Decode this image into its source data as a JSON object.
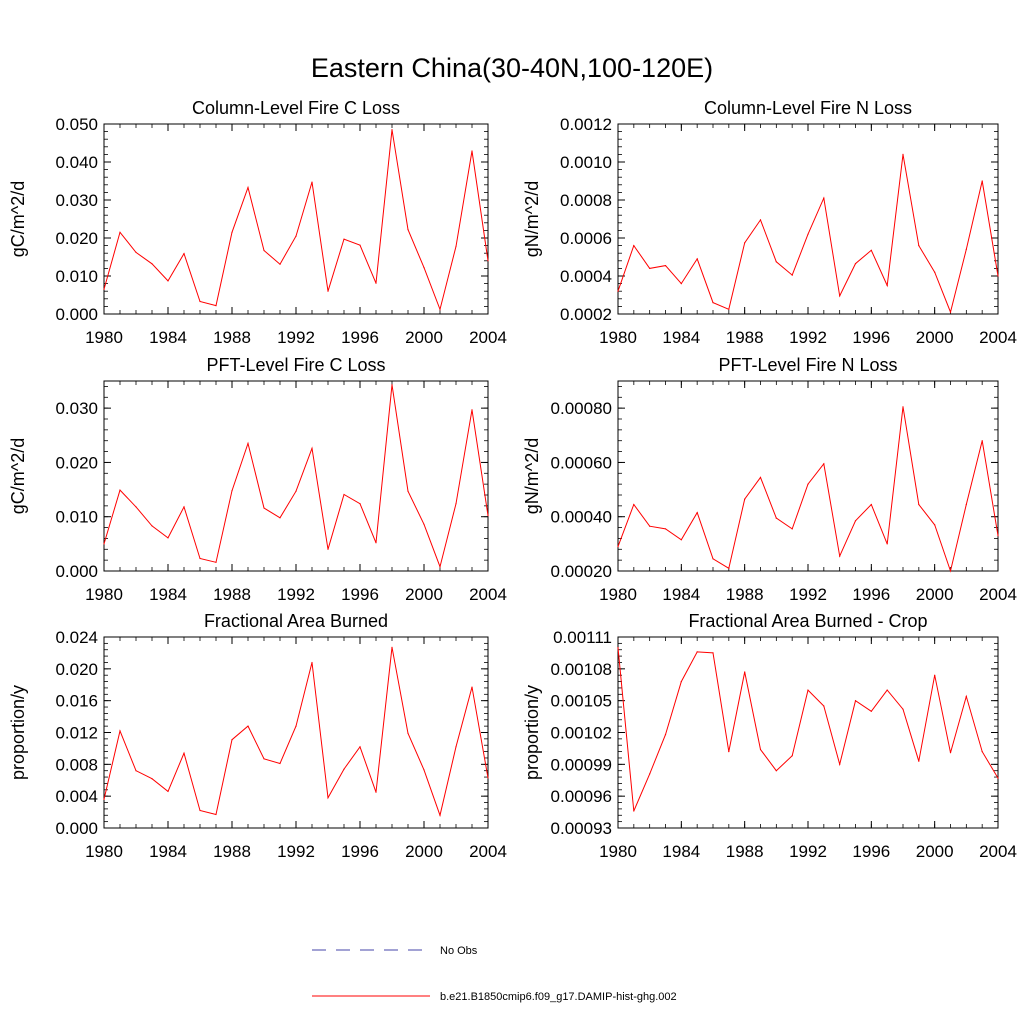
{
  "main_title": "Eastern China(30-40N,100-120E)",
  "series_color": "#ff0000",
  "obs_color": "#4444aa",
  "legend": {
    "obs_label": "No Obs",
    "model_label": "b.e21.B1850cmip6.f09_g17.DAMIP-hist-ghg.002"
  },
  "chart_data": [
    {
      "type": "line",
      "title": "Column-Level Fire C Loss",
      "ylabel": "gC/m^2/d",
      "xlim": [
        1980,
        2004
      ],
      "ylim": [
        0.0,
        0.05
      ],
      "yticks": [
        0.0,
        0.01,
        0.02,
        0.03,
        0.04,
        0.05
      ],
      "ytick_labels": [
        "0.000",
        "0.010",
        "0.020",
        "0.030",
        "0.040",
        "0.050"
      ],
      "xticks": [
        1980,
        1984,
        1988,
        1992,
        1996,
        2000,
        2004
      ],
      "xtick_labels": [
        "1980",
        "1984",
        "1988",
        "1992",
        "1996",
        "2000",
        "2004"
      ],
      "x": [
        1980,
        1981,
        1982,
        1983,
        1984,
        1985,
        1986,
        1987,
        1988,
        1989,
        1990,
        1991,
        1992,
        1993,
        1994,
        1995,
        1996,
        1997,
        1998,
        1999,
        2000,
        2001,
        2002,
        2003,
        2004
      ],
      "series": [
        {
          "values": [
            0.0065,
            0.0215,
            0.0162,
            0.0132,
            0.0087,
            0.0159,
            0.0033,
            0.0022,
            0.0215,
            0.0333,
            0.0167,
            0.0131,
            0.0205,
            0.0347,
            0.006,
            0.0197,
            0.0181,
            0.0081,
            0.0485,
            0.0222,
            0.0122,
            0.0012,
            0.0178,
            0.0429,
            0.014
          ]
        }
      ]
    },
    {
      "type": "line",
      "title": "Column-Level Fire N Loss",
      "ylabel": "gN/m^2/d",
      "xlim": [
        1980,
        2004
      ],
      "ylim": [
        0.0002,
        0.0012
      ],
      "yticks": [
        0.0002,
        0.0004,
        0.0006,
        0.0008,
        0.001,
        0.0012
      ],
      "ytick_labels": [
        "0.0002",
        "0.0004",
        "0.0006",
        "0.0008",
        "0.0010",
        "0.0012"
      ],
      "xticks": [
        1980,
        1984,
        1988,
        1992,
        1996,
        2000,
        2004
      ],
      "xtick_labels": [
        "1980",
        "1984",
        "1988",
        "1992",
        "1996",
        "2000",
        "2004"
      ],
      "x": [
        1980,
        1981,
        1982,
        1983,
        1984,
        1985,
        1986,
        1987,
        1988,
        1989,
        1990,
        1991,
        1992,
        1993,
        1994,
        1995,
        1996,
        1997,
        1998,
        1999,
        2000,
        2001,
        2002,
        2003,
        2004
      ],
      "series": [
        {
          "values": [
            0.00032,
            0.00056,
            0.00044,
            0.000455,
            0.00036,
            0.00049,
            0.00026,
            0.000225,
            0.000575,
            0.000695,
            0.000475,
            0.000405,
            0.00062,
            0.00081,
            0.000295,
            0.000465,
            0.000535,
            0.00035,
            0.00104,
            0.00056,
            0.00042,
            0.00021,
            0.00054,
            0.0009,
            0.0004
          ]
        }
      ]
    },
    {
      "type": "line",
      "title": "PFT-Level Fire C Loss",
      "ylabel": "gC/m^2/d",
      "xlim": [
        1980,
        2004
      ],
      "ylim": [
        0.0,
        0.035
      ],
      "yticks": [
        0.0,
        0.01,
        0.02,
        0.03
      ],
      "ytick_labels": [
        "0.000",
        "0.010",
        "0.020",
        "0.030"
      ],
      "xticks": [
        1980,
        1984,
        1988,
        1992,
        1996,
        2000,
        2004
      ],
      "xtick_labels": [
        "1980",
        "1984",
        "1988",
        "1992",
        "1996",
        "2000",
        "2004"
      ],
      "x": [
        1980,
        1981,
        1982,
        1983,
        1984,
        1985,
        1986,
        1987,
        1988,
        1989,
        1990,
        1991,
        1992,
        1993,
        1994,
        1995,
        1996,
        1997,
        1998,
        1999,
        2000,
        2001,
        2002,
        2003,
        2004
      ],
      "series": [
        {
          "values": [
            0.005,
            0.0149,
            0.0118,
            0.0083,
            0.0061,
            0.0118,
            0.0023,
            0.0016,
            0.0148,
            0.0235,
            0.0116,
            0.0098,
            0.0147,
            0.0226,
            0.004,
            0.0141,
            0.0124,
            0.0052,
            0.0343,
            0.0147,
            0.0086,
            0.0008,
            0.0124,
            0.0297,
            0.0102
          ]
        }
      ]
    },
    {
      "type": "line",
      "title": "PFT-Level Fire N Loss",
      "ylabel": "gN/m^2/d",
      "xlim": [
        1980,
        2004
      ],
      "ylim": [
        0.0002,
        0.0009
      ],
      "yticks": [
        0.0002,
        0.0004,
        0.0006,
        0.0008
      ],
      "ytick_labels": [
        "0.00020",
        "0.00040",
        "0.00060",
        "0.00080"
      ],
      "xticks": [
        1980,
        1984,
        1988,
        1992,
        1996,
        2000,
        2004
      ],
      "xtick_labels": [
        "1980",
        "1984",
        "1988",
        "1992",
        "1996",
        "2000",
        "2004"
      ],
      "x": [
        1980,
        1981,
        1982,
        1983,
        1984,
        1985,
        1986,
        1987,
        1988,
        1989,
        1990,
        1991,
        1992,
        1993,
        1994,
        1995,
        1996,
        1997,
        1998,
        1999,
        2000,
        2001,
        2002,
        2003,
        2004
      ],
      "series": [
        {
          "values": [
            0.00029,
            0.000445,
            0.000365,
            0.000355,
            0.000315,
            0.000415,
            0.000245,
            0.00021,
            0.000465,
            0.000545,
            0.000395,
            0.000355,
            0.00052,
            0.000595,
            0.000255,
            0.000385,
            0.000445,
            0.0003,
            0.000805,
            0.000445,
            0.00037,
            0.0002,
            0.000445,
            0.00068,
            0.00033
          ]
        }
      ]
    },
    {
      "type": "line",
      "title": "Fractional Area Burned",
      "ylabel": "proportion/y",
      "xlim": [
        1980,
        2004
      ],
      "ylim": [
        0.0,
        0.024
      ],
      "yticks": [
        0.0,
        0.004,
        0.008,
        0.012,
        0.016,
        0.02,
        0.024
      ],
      "ytick_labels": [
        "0.000",
        "0.004",
        "0.008",
        "0.012",
        "0.016",
        "0.020",
        "0.024"
      ],
      "xticks": [
        1980,
        1984,
        1988,
        1992,
        1996,
        2000,
        2004
      ],
      "xtick_labels": [
        "1980",
        "1984",
        "1988",
        "1992",
        "1996",
        "2000",
        "2004"
      ],
      "x": [
        1980,
        1981,
        1982,
        1983,
        1984,
        1985,
        1986,
        1987,
        1988,
        1989,
        1990,
        1991,
        1992,
        1993,
        1994,
        1995,
        1996,
        1997,
        1998,
        1999,
        2000,
        2001,
        2002,
        2003,
        2004
      ],
      "series": [
        {
          "values": [
            0.0036,
            0.0122,
            0.0072,
            0.0062,
            0.0046,
            0.0094,
            0.0022,
            0.0017,
            0.0111,
            0.0128,
            0.0087,
            0.0081,
            0.0128,
            0.0208,
            0.0038,
            0.0074,
            0.0102,
            0.0045,
            0.0227,
            0.0119,
            0.0073,
            0.0016,
            0.0102,
            0.0177,
            0.0063
          ]
        }
      ]
    },
    {
      "type": "line",
      "title": "Fractional Area Burned - Crop",
      "ylabel": "proportion/y",
      "xlim": [
        1980,
        2004
      ],
      "ylim": [
        0.00093,
        0.00111
      ],
      "yticks": [
        0.00093,
        0.00096,
        0.00099,
        0.00102,
        0.00105,
        0.00108,
        0.00111
      ],
      "ytick_labels": [
        "0.00093",
        "0.00096",
        "0.00099",
        "0.00102",
        "0.00105",
        "0.00108",
        "0.00111"
      ],
      "xticks": [
        1980,
        1984,
        1988,
        1992,
        1996,
        2000,
        2004
      ],
      "xtick_labels": [
        "1980",
        "1984",
        "1988",
        "1992",
        "1996",
        "2000",
        "2004"
      ],
      "x": [
        1980,
        1981,
        1982,
        1983,
        1984,
        1985,
        1986,
        1987,
        1988,
        1989,
        1990,
        1991,
        1992,
        1993,
        1994,
        1995,
        1996,
        1997,
        1998,
        1999,
        2000,
        2001,
        2002,
        2003,
        2004
      ],
      "series": [
        {
          "values": [
            0.0011,
            0.000946,
            0.000981,
            0.001018,
            0.001068,
            0.001096,
            0.001095,
            0.001002,
            0.001077,
            0.001004,
            0.000984,
            0.000998,
            0.00106,
            0.001045,
            0.00099,
            0.00105,
            0.00104,
            0.00106,
            0.001042,
            0.000993,
            0.001074,
            0.001001,
            0.001054,
            0.001002,
            0.000977
          ]
        }
      ]
    }
  ]
}
